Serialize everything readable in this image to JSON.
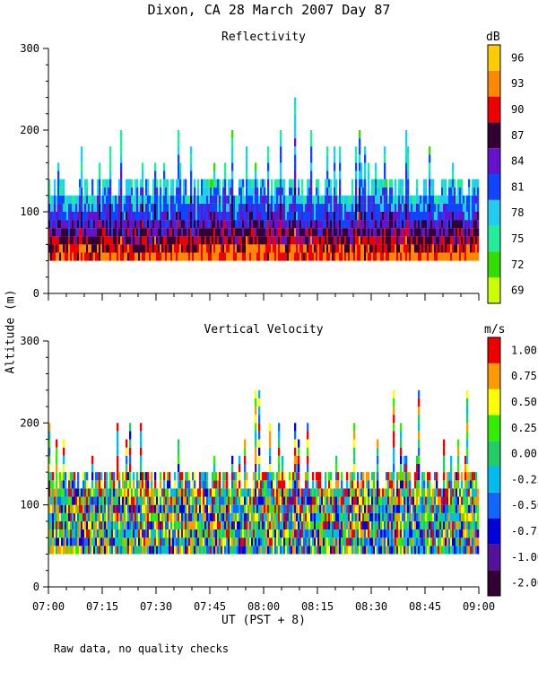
{
  "title": "Dixon, CA 28 March 2007  Day  87",
  "y_axis_label": "Altitude (m)",
  "x_axis_label": "UT  (PST + 8)",
  "footnote": "Raw data, no quality checks",
  "chart_data": [
    {
      "type": "heatmap",
      "title": "Reflectivity",
      "ylabel": "Altitude (m)",
      "xlabel": "UT  (PST + 8)",
      "ylim": [
        0,
        300
      ],
      "yticks": [
        0,
        100,
        200,
        300
      ],
      "xticks": [
        "07:00",
        "07:15",
        "07:30",
        "07:45",
        "08:00",
        "08:15",
        "08:30",
        "08:45",
        "09:00"
      ],
      "colorbar": {
        "unit": "dB",
        "labels": [
          "69",
          "72",
          "75",
          "78",
          "81",
          "84",
          "87",
          "90",
          "93",
          "96"
        ],
        "colors": [
          "#ccff00",
          "#33dd00",
          "#22ee99",
          "#22ccee",
          "#1144ff",
          "#6611cc",
          "#330033",
          "#ee0000",
          "#ff8800",
          "#ffcc00"
        ]
      },
      "data_range": {
        "altitude_bottom": 40,
        "typical_top": 140,
        "max_top": 240
      }
    },
    {
      "type": "heatmap",
      "title": "Vertical Velocity",
      "ylabel": "Altitude (m)",
      "xlabel": "UT  (PST + 8)",
      "ylim": [
        0,
        300
      ],
      "yticks": [
        0,
        100,
        200,
        300
      ],
      "xticks": [
        "07:00",
        "07:15",
        "07:30",
        "07:45",
        "08:00",
        "08:15",
        "08:30",
        "08:45",
        "09:00"
      ],
      "colorbar": {
        "unit": "m/s",
        "labels": [
          "-2.00",
          "-1.00",
          "-0.75",
          "-0.50",
          "-0.25",
          "0.00",
          "0.25",
          "0.50",
          "0.75",
          "1.00"
        ],
        "colors": [
          "#330033",
          "#551199",
          "#0000dd",
          "#1166ff",
          "#00bbee",
          "#22cc66",
          "#33ee00",
          "#ffff00",
          "#ff9900",
          "#ee0000"
        ]
      },
      "data_range": {
        "altitude_bottom": 40,
        "typical_top": 140,
        "max_top": 240
      }
    }
  ]
}
